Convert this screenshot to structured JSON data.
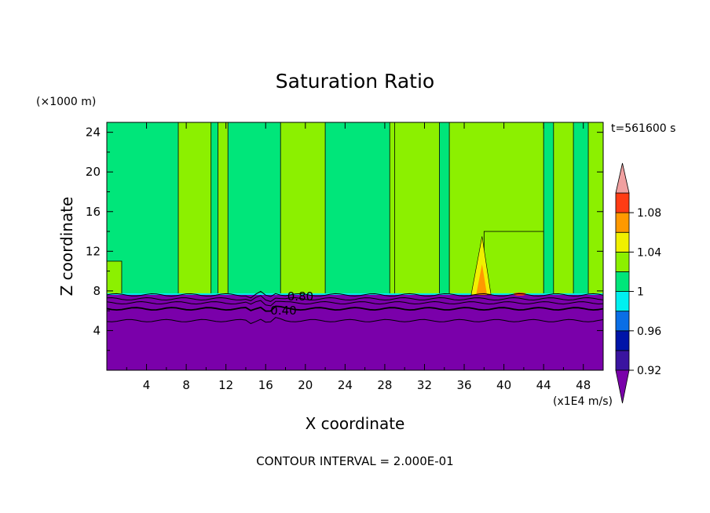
{
  "chart_data": {
    "type": "heatmap",
    "title": "Saturation Ratio",
    "xlabel": "X coordinate",
    "ylabel": "Z coordinate",
    "x_unit": "(x1E4 m/s)",
    "y_unit": "(×1000 m)",
    "time_label": "t=561600 s",
    "footer": "CONTOUR INTERVAL = 2.000E-01",
    "xlim": [
      0,
      50
    ],
    "ylim": [
      0,
      25
    ],
    "xticks": [
      4,
      8,
      12,
      16,
      20,
      24,
      28,
      32,
      36,
      40,
      44,
      48
    ],
    "yticks": [
      4,
      8,
      12,
      16,
      20,
      24
    ],
    "contour_labels": [
      {
        "text": "0.80",
        "x": 19.5,
        "y": 7.5
      },
      {
        "text": "0.40",
        "x": 17.8,
        "y": 6.1
      }
    ],
    "colorbar": {
      "levels": [
        0.92,
        0.94,
        0.96,
        0.98,
        1.0,
        1.02,
        1.04,
        1.06,
        1.08,
        1.1
      ],
      "tick_labels": [
        "0.92",
        "0.96",
        "1",
        "1.04",
        "1.08"
      ],
      "tick_values": [
        0.92,
        0.96,
        1.0,
        1.04,
        1.08
      ],
      "colors": {
        "under": "#7a00aa",
        "b0": "#3a14a0",
        "b1": "#0014a8",
        "b2": "#0a6ee6",
        "b3": "#00f0f0",
        "b4": "#00e67a",
        "b5": "#8cf000",
        "b6": "#f0f000",
        "b7": "#ff9900",
        "b8": "#ff3c14",
        "over": "#f0a0a0"
      }
    },
    "field": {
      "below_level_value": "< 0.92",
      "top_of_dry_layer_z": 7.6,
      "contour_lines_z": [
        7.6,
        7.2,
        6.8,
        6.2,
        5.0
      ],
      "background_value": "0.98 - 1.00",
      "regions_1_00_to_1_02": [
        {
          "x0": 7.2,
          "x1": 10.5,
          "z0": 7.6,
          "z1": 25
        },
        {
          "x0": 11.2,
          "x1": 12.2,
          "z0": 7.6,
          "z1": 25
        },
        {
          "x0": 17.5,
          "x1": 22.0,
          "z0": 7.6,
          "z1": 25
        },
        {
          "x0": 28.5,
          "x1": 29.5,
          "z0": 7.6,
          "z1": 25
        },
        {
          "x0": 29.0,
          "x1": 33.5,
          "z0": 7.6,
          "z1": 25
        },
        {
          "x0": 34.5,
          "x1": 44.0,
          "z0": 7.6,
          "z1": 25
        },
        {
          "x0": 38.0,
          "x1": 44.0,
          "z0": 7.6,
          "z1": 14
        },
        {
          "x0": 45.0,
          "x1": 47.0,
          "z0": 7.6,
          "z1": 25
        },
        {
          "x0": 48.5,
          "x1": 50.0,
          "z0": 7.6,
          "z1": 25
        },
        {
          "x0": 0.0,
          "x1": 1.5,
          "z0": 7.6,
          "z1": 11
        }
      ],
      "peak": {
        "x": 37.8,
        "z_top": 13.5,
        "max_band": "1.04 - 1.06"
      }
    }
  }
}
